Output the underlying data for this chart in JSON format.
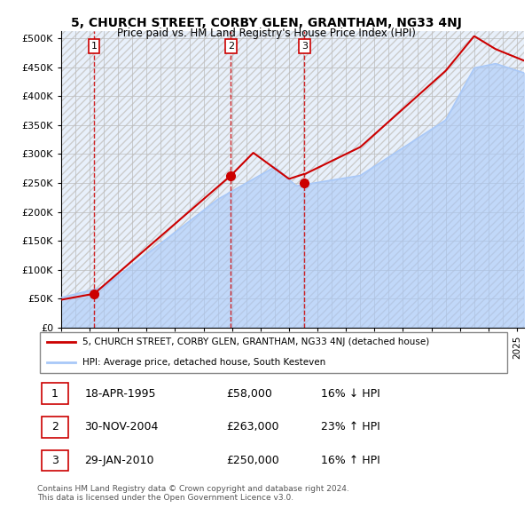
{
  "title": "5, CHURCH STREET, CORBY GLEN, GRANTHAM, NG33 4NJ",
  "subtitle": "Price paid vs. HM Land Registry's House Price Index (HPI)",
  "ylabel_ticks": [
    "£0",
    "£50K",
    "£100K",
    "£150K",
    "£200K",
    "£250K",
    "£300K",
    "£350K",
    "£400K",
    "£450K",
    "£500K"
  ],
  "ytick_values": [
    0,
    50000,
    100000,
    150000,
    200000,
    250000,
    300000,
    350000,
    400000,
    450000,
    500000
  ],
  "ylim": [
    0,
    512000
  ],
  "xlim_start": 1993.0,
  "xlim_end": 2025.5,
  "sale_dates": [
    1995.3,
    2004.92,
    2010.08
  ],
  "sale_prices": [
    58000,
    263000,
    250000
  ],
  "sale_labels": [
    "1",
    "2",
    "3"
  ],
  "legend_line1": "5, CHURCH STREET, CORBY GLEN, GRANTHAM, NG33 4NJ (detached house)",
  "legend_line2": "HPI: Average price, detached house, South Kesteven",
  "table_rows": [
    [
      "1",
      "18-APR-1995",
      "£58,000",
      "16% ↓ HPI"
    ],
    [
      "2",
      "30-NOV-2004",
      "£263,000",
      "23% ↑ HPI"
    ],
    [
      "3",
      "29-JAN-2010",
      "£250,000",
      "16% ↑ HPI"
    ]
  ],
  "footnote": "Contains HM Land Registry data © Crown copyright and database right 2024.\nThis data is licensed under the Open Government Licence v3.0.",
  "hpi_color": "#a8c8f8",
  "sale_line_color": "#cc0000",
  "sale_dot_color": "#cc0000",
  "vline_color": "#cc0000",
  "plot_bg_color": "#e8f0fb",
  "grid_color": "#bbbbbb",
  "hatch_color": "#cccccc"
}
